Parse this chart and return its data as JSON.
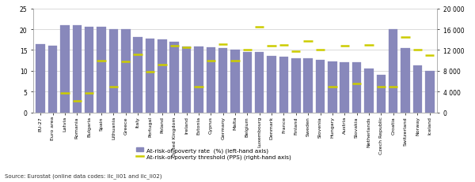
{
  "categories": [
    "EU-27",
    "Euro area",
    "Latvia",
    "Romania",
    "Bulgaria",
    "Spain",
    "Lithuania",
    "Greece",
    "Italy",
    "Portugal",
    "Poland",
    "United Kingdom",
    "Ireland",
    "Estonia",
    "Cyprus",
    "Germany",
    "Malta",
    "Belgium",
    "Luxembourg",
    "Denmark",
    "France",
    "Finland",
    "Sweden",
    "Slovenia",
    "Hungary",
    "Austria",
    "Slovakia",
    "Netherlands",
    "Czech Republic",
    "Croatia",
    "Switzerland",
    "Norway",
    "Iceland"
  ],
  "bar_values": [
    16.5,
    16.0,
    21.0,
    21.0,
    20.5,
    20.5,
    20.0,
    20.0,
    18.2,
    17.8,
    17.5,
    17.0,
    15.9,
    15.8,
    15.6,
    15.5,
    15.0,
    14.6,
    14.5,
    13.5,
    13.4,
    13.1,
    13.0,
    12.7,
    12.3,
    12.0,
    12.0,
    10.5,
    9.0,
    20.0,
    15.5,
    11.4,
    10.0
  ],
  "line_values": [
    null,
    null,
    3800,
    2200,
    3800,
    9900,
    5000,
    9800,
    11200,
    7800,
    9200,
    12800,
    12500,
    5000,
    10000,
    13200,
    10000,
    12000,
    16500,
    12800,
    13000,
    11800,
    13800,
    12000,
    5000,
    12800,
    5600,
    13000,
    5000,
    5000,
    14500,
    12000,
    11000
  ],
  "bar_color": "#8888bb",
  "line_color": "#cccc00",
  "left_ylim": [
    0,
    25
  ],
  "left_yticks": [
    0,
    5,
    10,
    15,
    20,
    25
  ],
  "right_ylim": [
    0,
    20000
  ],
  "right_yticks": [
    0,
    4000,
    8000,
    12000,
    16000,
    20000
  ],
  "right_yticklabels": [
    "0",
    "4 000",
    "8 000",
    "12 000",
    "16 000",
    "20 000"
  ],
  "legend_bar_label": "At-risk-of poverty rate  (%) (left-hand axis)",
  "legend_line_label": "At-risk-of-poverty threshold (PPS) (right-hand axis)",
  "source_text": "Source: Eurostat (online data codes: ilc_li01 and ilc_li02)"
}
